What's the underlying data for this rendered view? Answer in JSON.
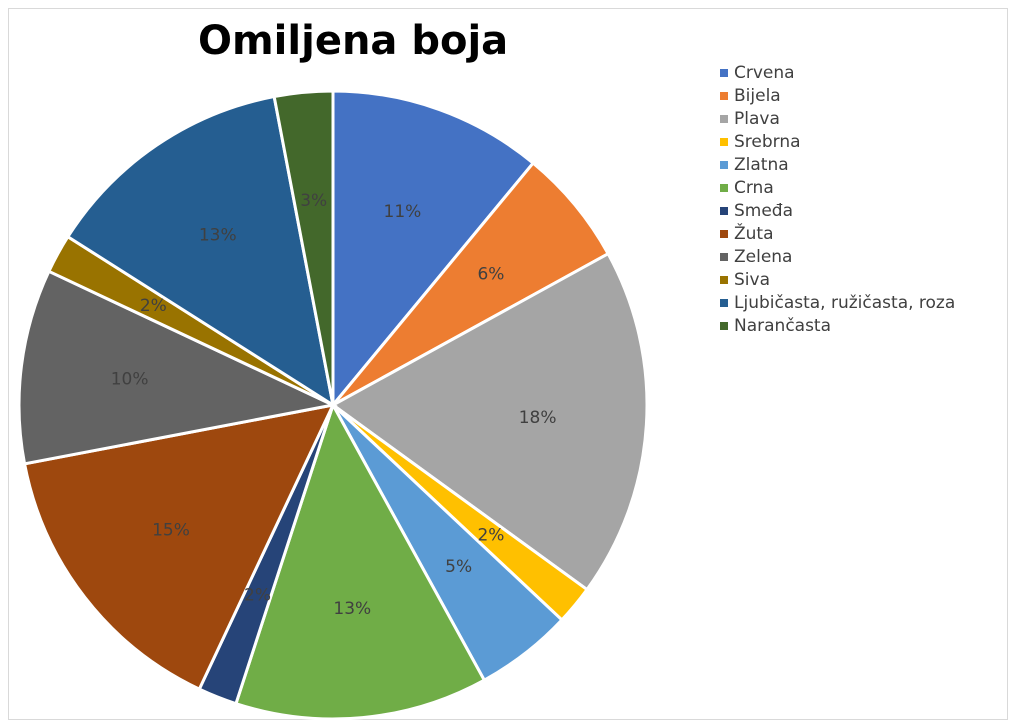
{
  "chart_data": {
    "type": "pie",
    "title": "Omiljena boja",
    "legend_position": "right",
    "categories": [
      "Crvena",
      "Bijela",
      "Plava",
      "Srebrna",
      "Zlatna",
      "Crna",
      "Smeđa",
      "Žuta",
      "Zelena",
      "Siva",
      "Ljubičasta, ružičasta, roza",
      "Narančasta"
    ],
    "values": [
      11,
      6,
      18,
      2,
      5,
      13,
      2,
      15,
      10,
      2,
      13,
      3
    ],
    "labels": [
      "11%",
      "6%",
      "18%",
      "2%",
      "5%",
      "13%",
      "2%",
      "15%",
      "10%",
      "2%",
      "13%",
      "3%"
    ],
    "colors": [
      "#4472C4",
      "#ED7D31",
      "#A5A5A5",
      "#FFC000",
      "#5B9BD5",
      "#70AD47",
      "#264478",
      "#9E480E",
      "#636363",
      "#997300",
      "#255E91",
      "#43682B"
    ],
    "label_color": "#404040"
  }
}
